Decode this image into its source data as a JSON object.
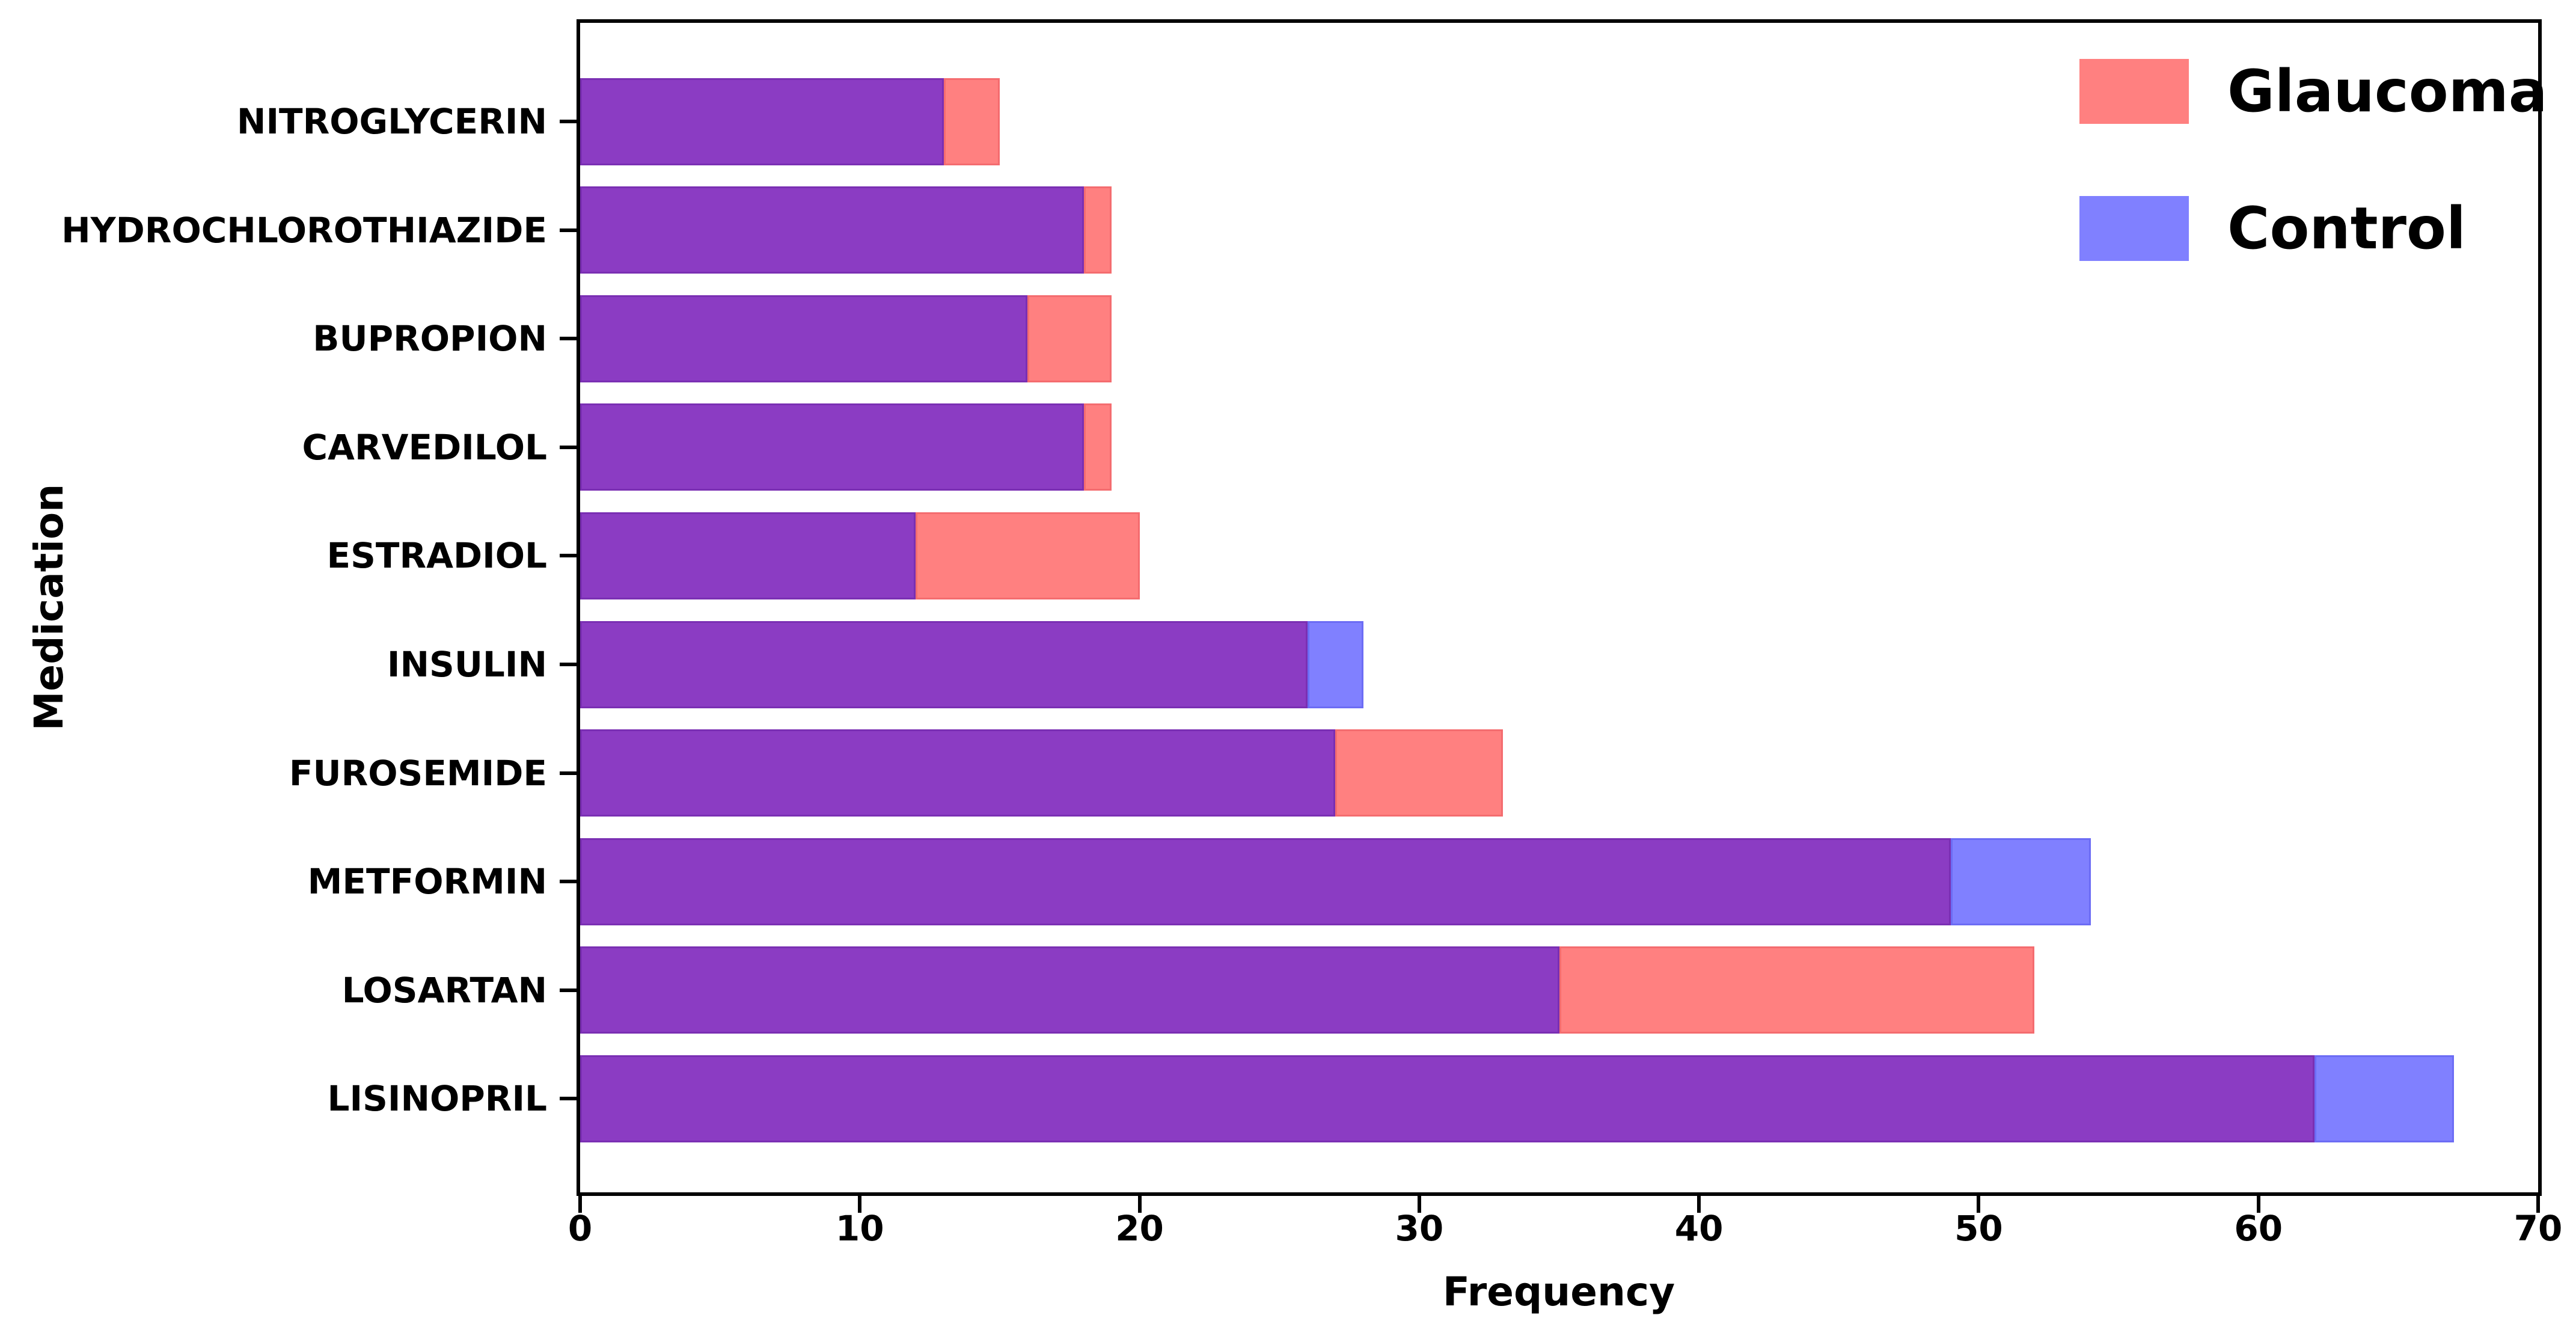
{
  "chart_data": {
    "type": "bar",
    "orientation": "horizontal",
    "title": "",
    "xlabel": "Frequency",
    "ylabel": "Medication",
    "xlim": [
      0,
      70
    ],
    "x_ticks": [
      0,
      10,
      20,
      30,
      40,
      50,
      60,
      70
    ],
    "grid": false,
    "legend_position": "upper right",
    "categories_top_to_bottom": [
      "NITROGLYCERIN",
      "HYDROCHLOROTHIAZIDE",
      "BUPROPION",
      "CARVEDILOL",
      "ESTRADIOL",
      "INSULIN",
      "FUROSEMIDE",
      "METFORMIN",
      "LOSARTAN",
      "LISINOPRIL"
    ],
    "series": [
      {
        "name": "Glaucoma",
        "color": "#ff8080",
        "values": [
          15,
          19,
          19,
          19,
          20,
          26,
          33,
          49,
          52,
          62
        ]
      },
      {
        "name": "Control",
        "color": "#8080ff",
        "values": [
          13,
          18,
          16,
          18,
          12,
          28,
          27,
          54,
          35,
          67
        ]
      }
    ],
    "overlap_color": "#8b3cc3",
    "legend": [
      {
        "label": "Glaucoma",
        "color": "#ff8080"
      },
      {
        "label": "Control",
        "color": "#8080ff"
      }
    ]
  }
}
